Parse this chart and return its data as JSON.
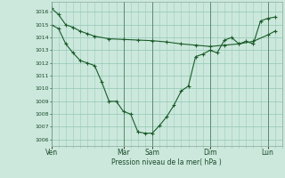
{
  "background_color": "#cce8dc",
  "grid_color": "#99ccbb",
  "line_color": "#1a5c2a",
  "marker_color": "#1a5c2a",
  "xlabel": "Pression niveau de la mer( hPa )",
  "ylim": [
    1005.5,
    1016.8
  ],
  "yticks": [
    1006,
    1007,
    1008,
    1009,
    1010,
    1011,
    1012,
    1013,
    1014,
    1015,
    1016
  ],
  "day_labels": [
    "Ven",
    "Mar",
    "Sam",
    "Dim",
    "Lun"
  ],
  "day_positions": [
    0,
    10,
    14,
    22,
    30
  ],
  "xlim": [
    0,
    32
  ],
  "line1_x": [
    0,
    1,
    2,
    3,
    4,
    5,
    6,
    8,
    10,
    12,
    14,
    16,
    18,
    20,
    22,
    24,
    26,
    28,
    30,
    31
  ],
  "line1_y": [
    1016.3,
    1015.8,
    1015.0,
    1014.8,
    1014.5,
    1014.3,
    1014.1,
    1013.9,
    1013.85,
    1013.8,
    1013.75,
    1013.65,
    1013.5,
    1013.4,
    1013.3,
    1013.4,
    1013.5,
    1013.7,
    1014.2,
    1014.5
  ],
  "line2_x": [
    0,
    1,
    2,
    3,
    4,
    5,
    6,
    7,
    8,
    9,
    10,
    11,
    12,
    13,
    14,
    15,
    16,
    17,
    18,
    19,
    20,
    21,
    22,
    23,
    24,
    25,
    26,
    27,
    28,
    29,
    30,
    31
  ],
  "line2_y": [
    1015.0,
    1014.7,
    1013.5,
    1012.8,
    1012.2,
    1012.0,
    1011.8,
    1010.5,
    1009.0,
    1009.0,
    1008.2,
    1008.0,
    1006.6,
    1006.5,
    1006.5,
    1007.1,
    1007.8,
    1008.7,
    1009.8,
    1010.2,
    1012.5,
    1012.7,
    1013.0,
    1012.8,
    1013.8,
    1014.0,
    1013.5,
    1013.7,
    1013.5,
    1015.3,
    1015.5,
    1015.6
  ]
}
